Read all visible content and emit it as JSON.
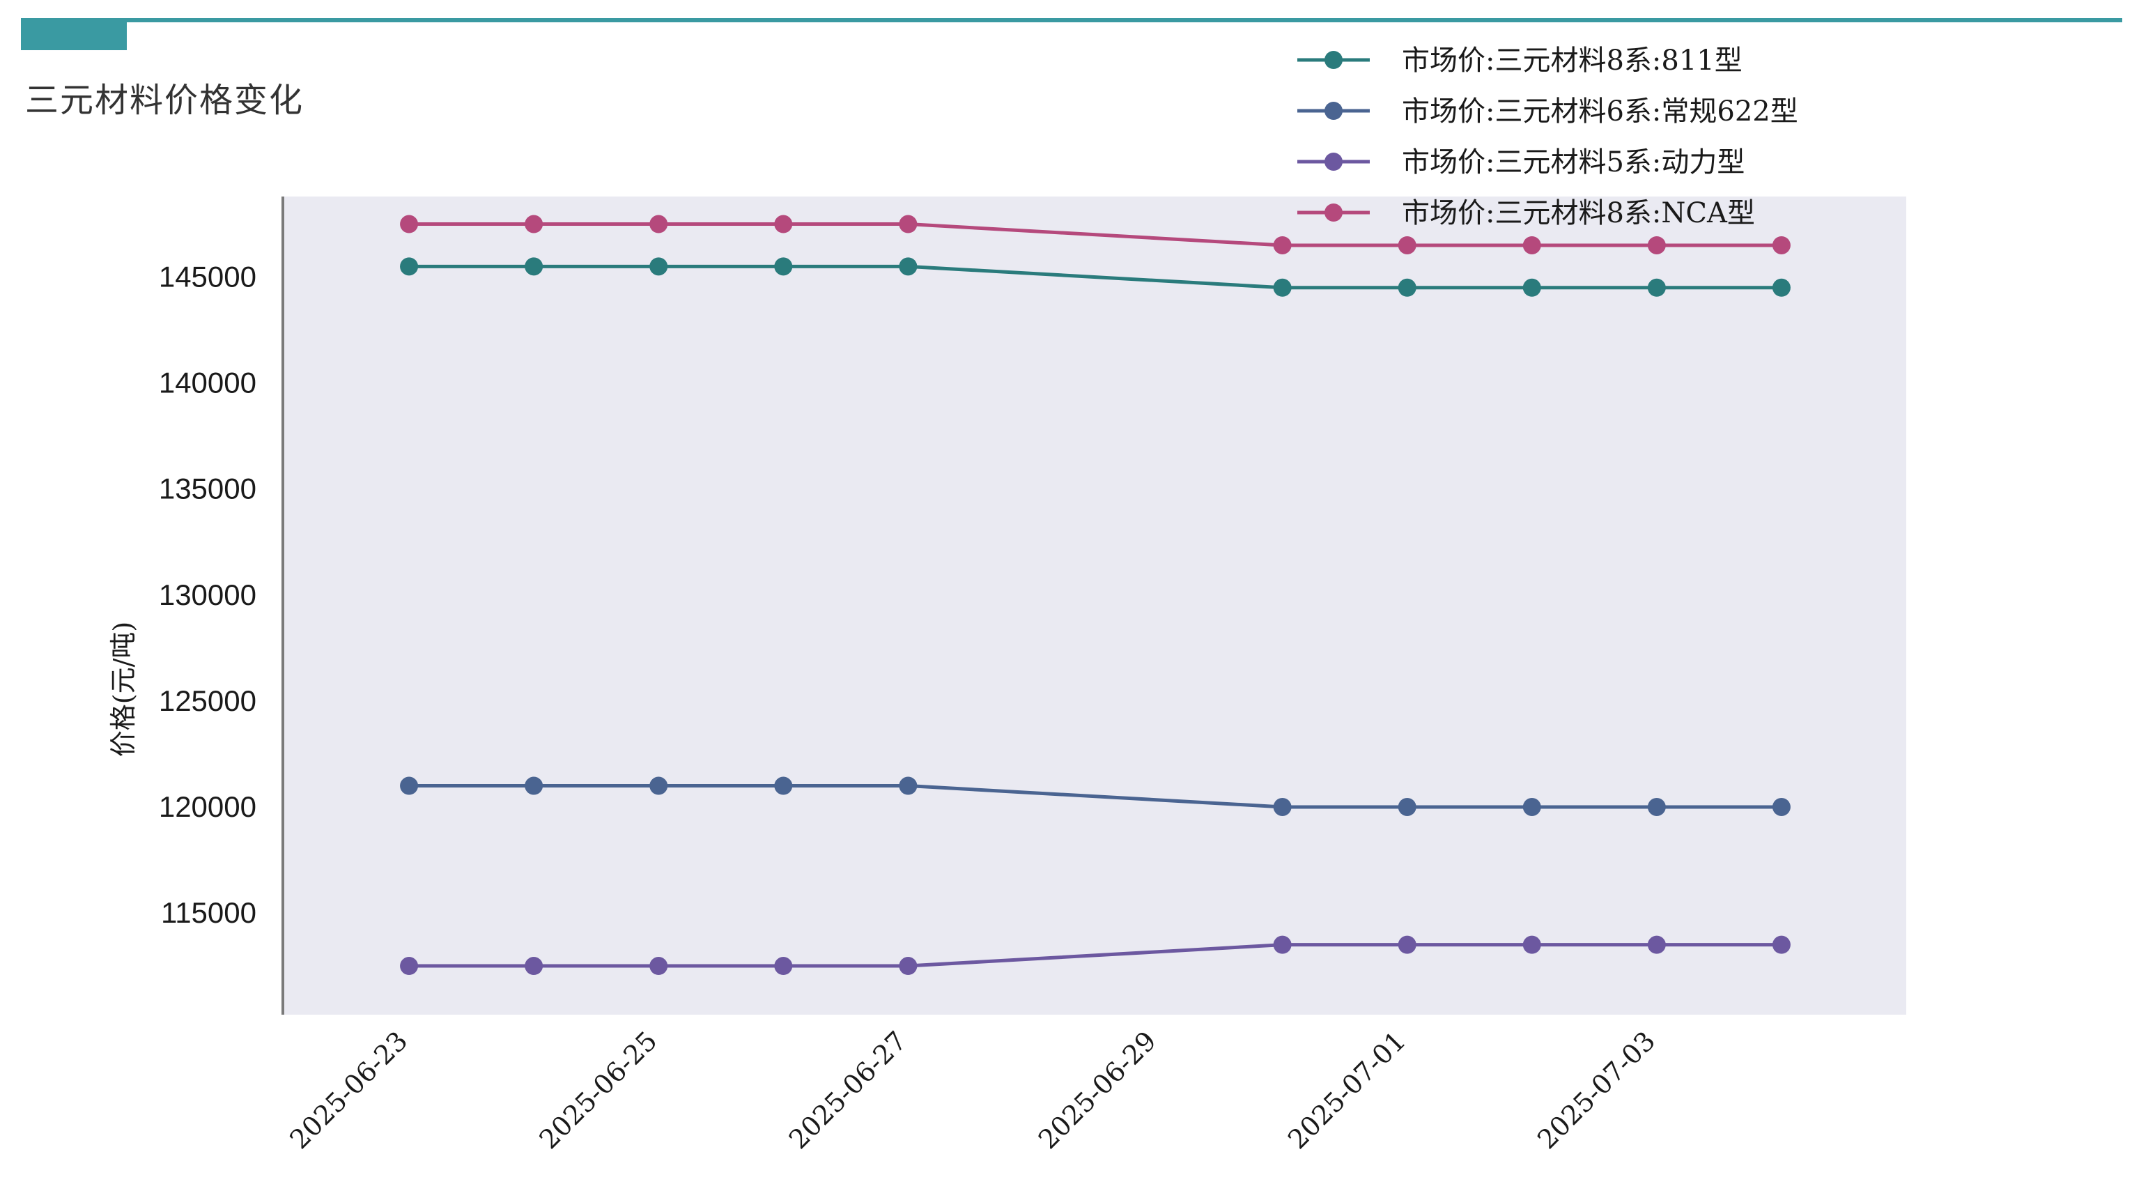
{
  "page": {
    "title": "三元材料价格变化",
    "accent_color": "#3a9aa2"
  },
  "chart_data": {
    "type": "line",
    "title": "",
    "xlabel": "",
    "ylabel": "价格(元/吨)",
    "x": [
      "2025-06-23",
      "2025-06-24",
      "2025-06-25",
      "2025-06-26",
      "2025-06-27",
      "2025-06-30",
      "2025-07-01",
      "2025-07-02",
      "2025-07-03",
      "2025-07-04"
    ],
    "x_ticks": [
      "2025-06-23",
      "2025-06-25",
      "2025-06-27",
      "2025-06-29",
      "2025-07-01",
      "2025-07-03"
    ],
    "y_ticks": [
      115000,
      120000,
      125000,
      130000,
      135000,
      140000,
      145000
    ],
    "xlim": [
      "2025-06-22",
      "2025-07-05"
    ],
    "ylim": [
      110200,
      148800
    ],
    "grid": false,
    "plot_background": "#eaeaf2",
    "legend_position": "top-right",
    "series": [
      {
        "name": "市场价:三元材料8系:811型",
        "color": "#2a7b7c",
        "values": [
          145500,
          145500,
          145500,
          145500,
          145500,
          144500,
          144500,
          144500,
          144500,
          144500
        ]
      },
      {
        "name": "市场价:三元材料6系:常规622型",
        "color": "#4a6491",
        "values": [
          121000,
          121000,
          121000,
          121000,
          121000,
          120000,
          120000,
          120000,
          120000,
          120000
        ]
      },
      {
        "name": "市场价:三元材料5系:动力型",
        "color": "#6c58a0",
        "values": [
          112500,
          112500,
          112500,
          112500,
          112500,
          113500,
          113500,
          113500,
          113500,
          113500
        ]
      },
      {
        "name": "市场价:三元材料8系:NCA型",
        "color": "#b5497c",
        "values": [
          147500,
          147500,
          147500,
          147500,
          147500,
          146500,
          146500,
          146500,
          146500,
          146500
        ]
      }
    ]
  }
}
